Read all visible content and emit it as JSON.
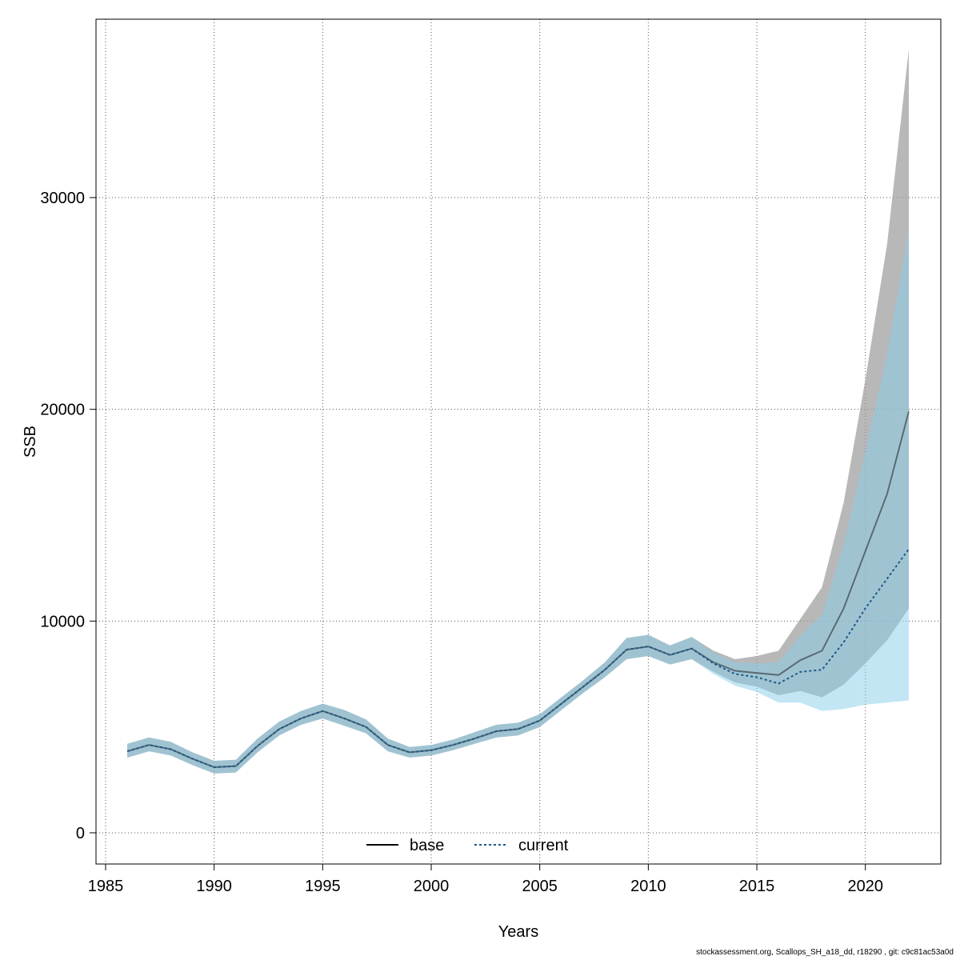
{
  "chart_data": {
    "type": "line",
    "xlabel": "Years",
    "ylabel": "SSB",
    "xlim": [
      1985,
      2022
    ],
    "ylim": [
      -1500,
      38500
    ],
    "x_ticks": [
      1985,
      1990,
      1995,
      2000,
      2005,
      2010,
      2015,
      2020
    ],
    "y_ticks": [
      0,
      10000,
      20000,
      30000
    ],
    "grid": true,
    "legend_position": "bottom-center",
    "x": [
      1986,
      1987,
      1988,
      1989,
      1990,
      1991,
      1992,
      1993,
      1994,
      1995,
      1996,
      1997,
      1998,
      1999,
      2000,
      2001,
      2002,
      2003,
      2004,
      2005,
      2006,
      2007,
      2008,
      2009,
      2010,
      2011,
      2012,
      2013,
      2014,
      2015,
      2016,
      2017,
      2018,
      2019,
      2020,
      2021,
      2022
    ],
    "series": [
      {
        "name": "base",
        "color": "#000000",
        "dash": "solid",
        "band_color": "#9a9a9a",
        "values": [
          3850,
          4150,
          3950,
          3500,
          3100,
          3150,
          4100,
          4900,
          5400,
          5750,
          5400,
          5000,
          4150,
          3800,
          3900,
          4150,
          4450,
          4800,
          4900,
          5300,
          6100,
          6900,
          7700,
          8650,
          8800,
          8400,
          8700,
          8050,
          7650,
          7550,
          7450,
          8150,
          8600,
          10600,
          13300,
          16000,
          19900
        ],
        "lower": [
          3550,
          3850,
          3650,
          3200,
          2800,
          2850,
          3800,
          4600,
          5100,
          5400,
          5050,
          4700,
          3850,
          3550,
          3650,
          3900,
          4200,
          4500,
          4600,
          5000,
          5800,
          6600,
          7350,
          8200,
          8350,
          7950,
          8200,
          7600,
          7100,
          6900,
          6500,
          6700,
          6400,
          7000,
          8000,
          9100,
          10600
        ],
        "upper": [
          4200,
          4500,
          4300,
          3800,
          3400,
          3450,
          4450,
          5250,
          5750,
          6100,
          5800,
          5350,
          4450,
          4050,
          4150,
          4400,
          4750,
          5100,
          5200,
          5600,
          6400,
          7200,
          8050,
          9200,
          9350,
          8850,
          9250,
          8600,
          8200,
          8350,
          8600,
          10100,
          11600,
          15600,
          21400,
          27800,
          37000
        ]
      },
      {
        "name": "current",
        "color": "#1a5a8a",
        "dash": "dotted",
        "band_color": "#87ceeb",
        "values": [
          3850,
          4150,
          3950,
          3500,
          3100,
          3150,
          4100,
          4900,
          5400,
          5750,
          5400,
          5000,
          4150,
          3800,
          3900,
          4150,
          4450,
          4800,
          4900,
          5300,
          6100,
          6900,
          7700,
          8650,
          8800,
          8400,
          8700,
          8000,
          7500,
          7350,
          7050,
          7600,
          7700,
          9000,
          10600,
          12000,
          13400
        ],
        "lower": [
          3550,
          3850,
          3650,
          3200,
          2800,
          2850,
          3800,
          4600,
          5100,
          5400,
          5050,
          4700,
          3850,
          3550,
          3650,
          3900,
          4200,
          4500,
          4600,
          5000,
          5800,
          6600,
          7350,
          8200,
          8350,
          7950,
          8200,
          7500,
          6950,
          6650,
          6150,
          6150,
          5750,
          5850,
          6050,
          6150,
          6250
        ],
        "upper": [
          4200,
          4500,
          4300,
          3800,
          3400,
          3450,
          4450,
          5250,
          5750,
          6100,
          5800,
          5350,
          4450,
          4050,
          4150,
          4400,
          4750,
          5100,
          5200,
          5600,
          6400,
          7200,
          8050,
          9200,
          9350,
          8850,
          9250,
          8500,
          8050,
          8000,
          8050,
          9300,
          10300,
          13600,
          18000,
          22600,
          28500
        ]
      }
    ]
  },
  "footer_text": "stockassessment.org, Scallops_SH_a18_dd, r18290 , git: c9c81ac53a0d"
}
